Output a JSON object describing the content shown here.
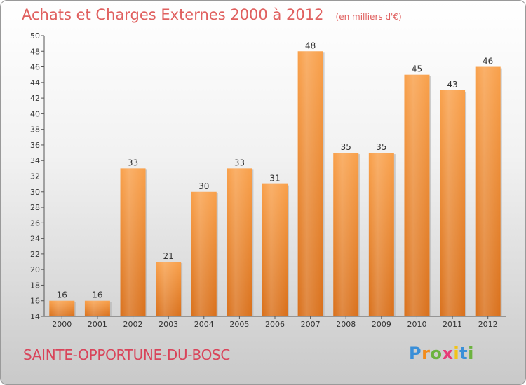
{
  "header": {
    "title": "Achats et Charges Externes 2000 à 2012",
    "unit": "(en milliers d'€)"
  },
  "footer": {
    "place": "SAINTE-OPPORTUNE-DU-BOSC",
    "logo_letters": [
      "P",
      "r",
      "o",
      "x",
      "i",
      "t",
      "i"
    ],
    "logo_colors": [
      "#3a8fd8",
      "#f28c1c",
      "#6cb33f",
      "#e73b78",
      "#f2c318",
      "#3a8fd8",
      "#6cb33f"
    ]
  },
  "chart_data": {
    "type": "bar",
    "categories": [
      "2000",
      "2001",
      "2002",
      "2003",
      "2004",
      "2005",
      "2006",
      "2007",
      "2008",
      "2009",
      "2010",
      "2011",
      "2012"
    ],
    "values": [
      16,
      16,
      33,
      21,
      30,
      33,
      31,
      48,
      35,
      35,
      45,
      43,
      46
    ],
    "ylim": [
      14,
      50
    ],
    "yticks": [
      14,
      16,
      18,
      20,
      22,
      24,
      26,
      28,
      30,
      32,
      34,
      36,
      38,
      40,
      42,
      44,
      46,
      48,
      50
    ],
    "grid": false,
    "bar_color": "#f28c28"
  }
}
